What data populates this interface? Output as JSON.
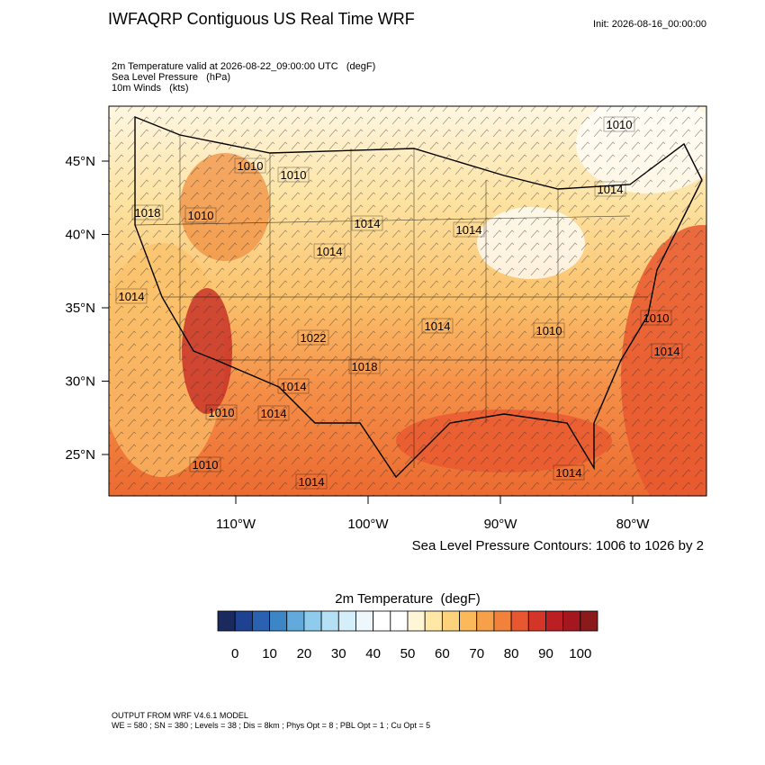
{
  "header": {
    "title": "IWFAQRP Contiguous US Real Time WRF",
    "init": "Init: 2026-08-16_00:00:00",
    "fields": [
      "2m Temperature valid at 2026-08-22_09:00:00 UTC   (degF)",
      "Sea Level Pressure   (hPa)",
      "10m Winds   (kts)"
    ]
  },
  "map": {
    "lat_ticks": [
      {
        "value": 45,
        "label": "45°N"
      },
      {
        "value": 40,
        "label": "40°N"
      },
      {
        "value": 35,
        "label": "35°N"
      },
      {
        "value": 30,
        "label": "30°N"
      },
      {
        "value": 25,
        "label": "25°N"
      }
    ],
    "lon_ticks": [
      {
        "value": -110,
        "label": "110°W"
      },
      {
        "value": -100,
        "label": "100°W"
      },
      {
        "value": -90,
        "label": "90°W"
      },
      {
        "value": -80,
        "label": "80°W"
      }
    ],
    "contour_labels": [
      "1010",
      "1014",
      "1018",
      "1010",
      "1010",
      "1010",
      "1014",
      "1014",
      "1014",
      "1014",
      "1014",
      "1010",
      "1010",
      "1014",
      "1022",
      "1018",
      "1014",
      "1010",
      "1014",
      "1010",
      "1014",
      "1014"
    ],
    "contour_note": "Sea Level Pressure Contours: 1006 to 1026 by 2"
  },
  "colorbar": {
    "title": "2m Temperature  (degF)",
    "colors": [
      "#1b2a5e",
      "#1f4192",
      "#2a61b0",
      "#3d86c6",
      "#62aadb",
      "#8fcbed",
      "#b3e0f5",
      "#d4eefa",
      "#eef8fc",
      "#ffffff",
      "#ffffff",
      "#fff6d8",
      "#ffe8a6",
      "#fdd27c",
      "#fbb95a",
      "#f7a04a",
      "#f2813c",
      "#e8572f",
      "#d33527",
      "#bb1e23",
      "#a5171f",
      "#8b1a1a"
    ],
    "ticks": [
      0,
      10,
      20,
      30,
      40,
      50,
      60,
      70,
      80,
      90,
      100
    ]
  },
  "footer": [
    "OUTPUT FROM WRF V4.6.1 MODEL",
    "WE = 580 ; SN = 380 ; Levels = 38 ; Dis = 8km ; Phys Opt = 8 ; PBL Opt = 1 ; Cu Opt = 5"
  ]
}
